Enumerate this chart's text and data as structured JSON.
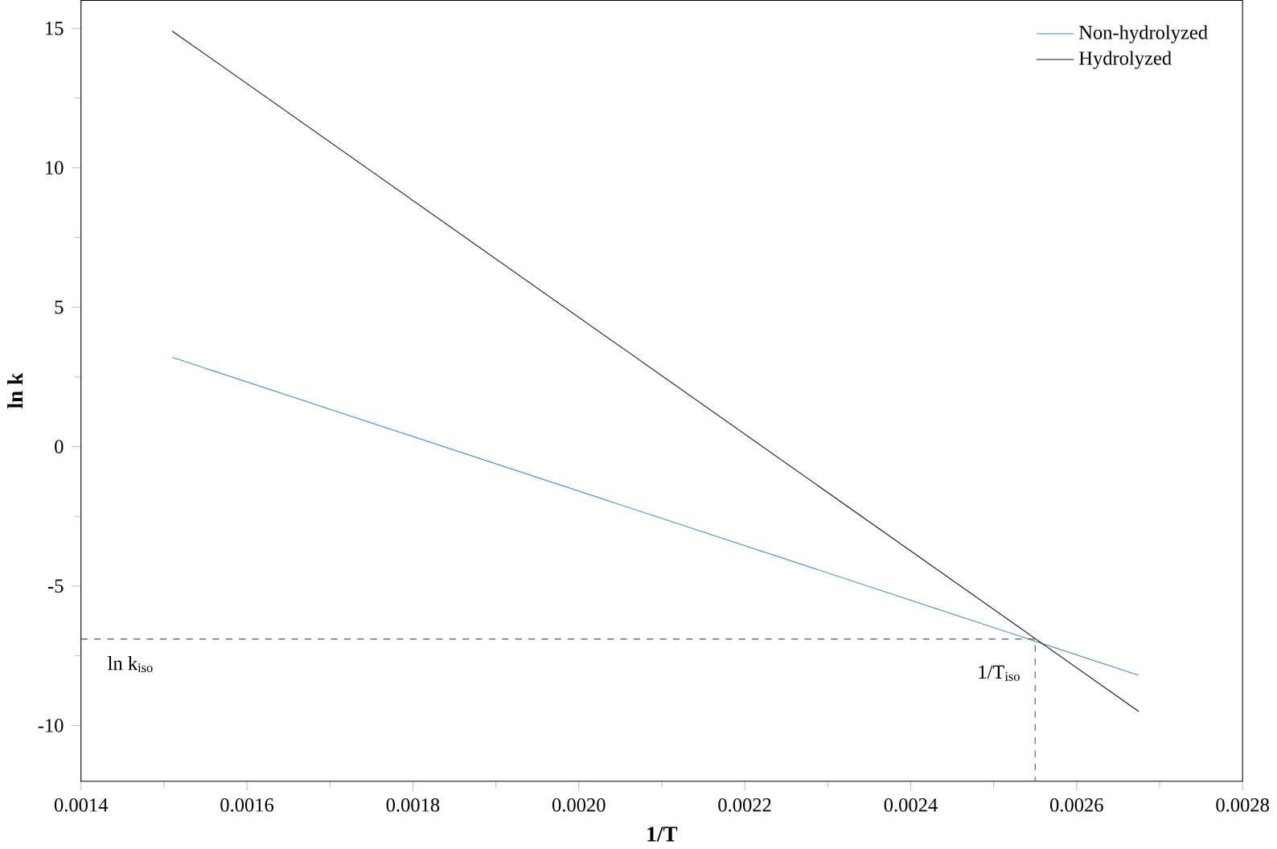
{
  "chart_data": {
    "type": "line",
    "xlabel": "1/T",
    "ylabel": "ln k",
    "xlim": [
      0.0014,
      0.0028
    ],
    "ylim": [
      -12,
      16
    ],
    "xticks": [
      {
        "value": 0.0014,
        "label": "0.0014"
      },
      {
        "value": 0.0016,
        "label": "0.0016"
      },
      {
        "value": 0.0018,
        "label": "0.0018"
      },
      {
        "value": 0.002,
        "label": "0.0020"
      },
      {
        "value": 0.0022,
        "label": "0.0022"
      },
      {
        "value": 0.0024,
        "label": "0.0024"
      },
      {
        "value": 0.0026,
        "label": "0.0026"
      },
      {
        "value": 0.0028,
        "label": "0.0028"
      }
    ],
    "yticks": [
      -10,
      -5,
      0,
      5,
      10,
      15
    ],
    "series": [
      {
        "name": "Non-hydrolyzed",
        "color": "#3d8fe0",
        "x": [
          0.00151,
          0.002675
        ],
        "values": [
          3.2,
          -8.2
        ]
      },
      {
        "name": "Hydrolyzed",
        "color": "#1a1a1a",
        "x": [
          0.00151,
          0.002675
        ],
        "values": [
          14.9,
          -9.5
        ]
      },
      {
        "color": "#555555",
        "line_style": "dashed",
        "x": [
          0.0014,
          0.00255,
          0.00255
        ],
        "values": [
          -6.9,
          -6.9,
          -12
        ]
      }
    ],
    "annotations": [
      "ln k$_{iso}$",
      "1/T$_{iso}$"
    ],
    "legend": "top right",
    "grid": false,
    "marker": "none"
  }
}
